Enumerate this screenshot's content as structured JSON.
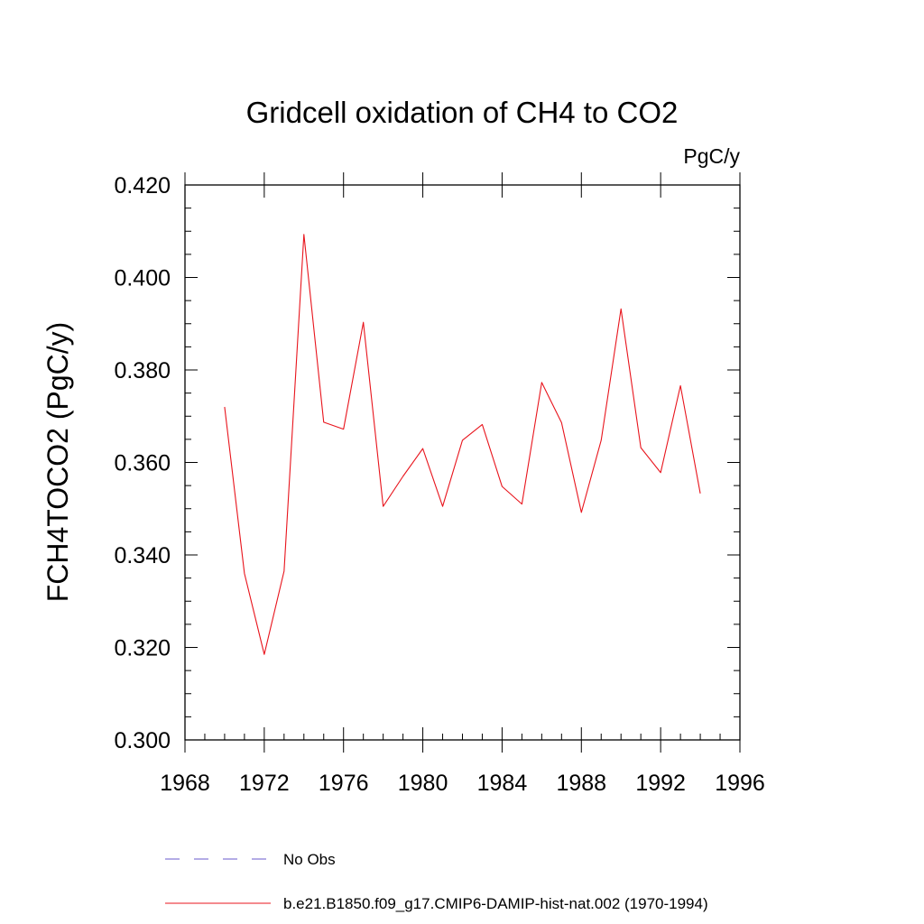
{
  "chart_data": {
    "type": "line",
    "title": "Gridcell oxidation of CH4 to CO2",
    "units": "PgC/y",
    "xlabel": "",
    "ylabel": "FCH4TOCO2  (PgC/y)",
    "xlim": [
      1968,
      1996
    ],
    "ylim": [
      0.3,
      0.42
    ],
    "x_ticks": [
      "1968",
      "1972",
      "1976",
      "1980",
      "1984",
      "1988",
      "1992",
      "1996"
    ],
    "y_ticks": [
      "0.300",
      "0.320",
      "0.340",
      "0.360",
      "0.380",
      "0.400",
      "0.420"
    ],
    "grid": false,
    "legend_position": "bottom",
    "series": [
      {
        "name": "b.e21.B1850.f09_g17.CMIP6-DAMIP-hist-nat.002 (1970-1994)",
        "color": "#e8141c",
        "style": "solid",
        "x": [
          1970,
          1971,
          1972,
          1973,
          1974,
          1975,
          1976,
          1977,
          1978,
          1979,
          1980,
          1981,
          1982,
          1983,
          1984,
          1985,
          1986,
          1987,
          1988,
          1989,
          1990,
          1991,
          1992,
          1993,
          1994
        ],
        "values": [
          0.372,
          0.336,
          0.3185,
          0.3365,
          0.4093,
          0.3687,
          0.3672,
          0.3903,
          0.3505,
          0.357,
          0.363,
          0.3505,
          0.3648,
          0.3682,
          0.3548,
          0.351,
          0.3773,
          0.3686,
          0.3492,
          0.3648,
          0.3932,
          0.3632,
          0.3578,
          0.3766,
          0.3533
        ]
      }
    ],
    "legend": [
      {
        "label": "No Obs",
        "color": "#6a5acd",
        "style": "dashed"
      },
      {
        "label": "b.e21.B1850.f09_g17.CMIP6-DAMIP-hist-nat.002 (1970-1994)",
        "color": "#e8141c",
        "style": "solid"
      }
    ]
  }
}
